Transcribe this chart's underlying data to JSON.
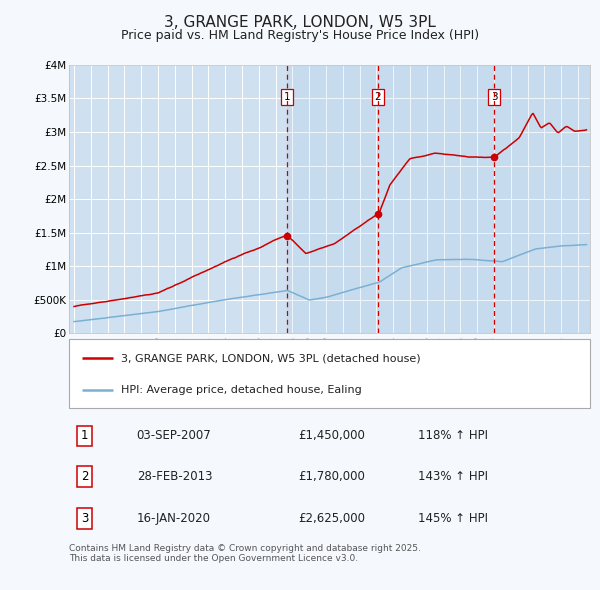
{
  "title": "3, GRANGE PARK, LONDON, W5 3PL",
  "subtitle": "Price paid vs. HM Land Registry's House Price Index (HPI)",
  "title_fontsize": 11,
  "subtitle_fontsize": 9,
  "bg_color": "#cfe0f0",
  "fig_bg_color": "#f5f8fc",
  "grid_color": "#ffffff",
  "red_color": "#cc0000",
  "blue_color": "#7ab0d4",
  "ylim": [
    0,
    4000000
  ],
  "yticks": [
    0,
    500000,
    1000000,
    1500000,
    2000000,
    2500000,
    3000000,
    3500000,
    4000000
  ],
  "ytick_labels": [
    "£0",
    "£500K",
    "£1M",
    "£1.5M",
    "£2M",
    "£2.5M",
    "£3M",
    "£3.5M",
    "£4M"
  ],
  "sale_prices": [
    1450000,
    1780000,
    2625000
  ],
  "sale_labels": [
    "1",
    "2",
    "3"
  ],
  "sale_date_strs": [
    "03-SEP-2007",
    "28-FEB-2013",
    "16-JAN-2020"
  ],
  "sale_price_strs": [
    "£1,450,000",
    "£1,780,000",
    "£2,625,000"
  ],
  "sale_hpi_strs": [
    "118% ↑ HPI",
    "143% ↑ HPI",
    "145% ↑ HPI"
  ],
  "legend_line1": "3, GRANGE PARK, LONDON, W5 3PL (detached house)",
  "legend_line2": "HPI: Average price, detached house, Ealing",
  "footnote": "Contains HM Land Registry data © Crown copyright and database right 2025.\nThis data is licensed under the Open Government Licence v3.0.",
  "xmin": 1994.7,
  "xmax": 2025.7
}
